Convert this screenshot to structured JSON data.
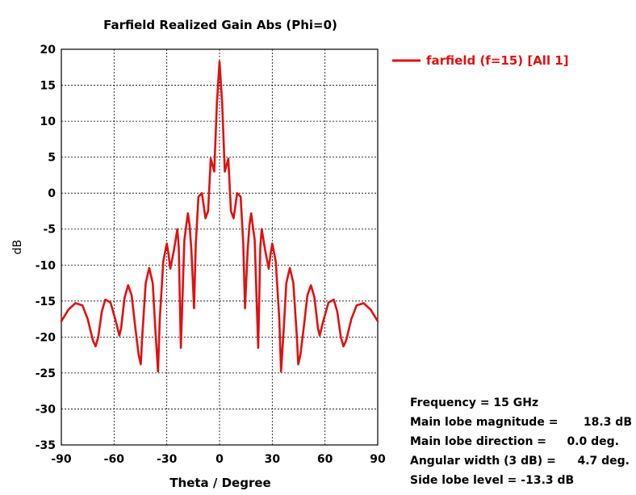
{
  "chart_data": {
    "type": "line",
    "title": "Farfield Realized Gain Abs (Phi=0)",
    "xlabel": "Theta / Degree",
    "ylabel": "dB",
    "xlim": [
      -90,
      90
    ],
    "ylim": [
      -35,
      20
    ],
    "xticks": [
      -90,
      -60,
      -30,
      0,
      30,
      60,
      90
    ],
    "yticks": [
      20,
      15,
      10,
      5,
      0,
      -5,
      -10,
      -15,
      -20,
      -25,
      -30,
      -35
    ],
    "grid": true,
    "legend_position": "top-right",
    "line_color": "#e01010",
    "series": [
      {
        "name": "farfield (f=15) [All 1]",
        "x": [
          -90,
          -86,
          -82,
          -78,
          -75,
          -72,
          -70.5,
          -69,
          -67,
          -65,
          -62,
          -59,
          -57,
          -56,
          -54,
          -52,
          -50,
          -48,
          -46,
          -44.8,
          -44,
          -42,
          -40,
          -38,
          -36.5,
          -35,
          -34,
          -32,
          -30,
          -29,
          -28,
          -26,
          -24,
          -23.2,
          -22,
          -20,
          -18,
          -17,
          -16,
          -14.5,
          -13.5,
          -12,
          -10,
          -8,
          -6.5,
          -5,
          -3,
          -1.5,
          0,
          1.5,
          3,
          5,
          6.5,
          8,
          10,
          12,
          13.5,
          14.5,
          16,
          17,
          18,
          20,
          22,
          23.2,
          24,
          26,
          28,
          29,
          30,
          32,
          34,
          35,
          36.5,
          38,
          40,
          42,
          44,
          44.8,
          46,
          48,
          50,
          52,
          54,
          56,
          57,
          59,
          62,
          65,
          67,
          69,
          70.5,
          72,
          75,
          78,
          82,
          86,
          90
        ],
        "y": [
          -17.8,
          -16.2,
          -15.3,
          -15.6,
          -17.5,
          -20.5,
          -21.3,
          -20.0,
          -16.5,
          -14.8,
          -15.2,
          -17.8,
          -19.8,
          -18.8,
          -14.5,
          -12.8,
          -14.2,
          -18.5,
          -22.5,
          -23.8,
          -20.0,
          -12.5,
          -10.4,
          -12.5,
          -19.0,
          -24.8,
          -17.5,
          -9.5,
          -7.0,
          -8.5,
          -10.5,
          -8.0,
          -5.0,
          -7.5,
          -21.5,
          -6.5,
          -2.8,
          -4.5,
          -8.0,
          -16.0,
          -7.0,
          -0.5,
          0.0,
          -3.5,
          -2.5,
          4.8,
          3.0,
          12.5,
          18.3,
          12.5,
          3.0,
          4.8,
          -2.5,
          -3.5,
          0.0,
          -0.5,
          -7.0,
          -16.0,
          -8.0,
          -4.5,
          -2.8,
          -6.5,
          -21.5,
          -7.5,
          -5.0,
          -8.0,
          -10.5,
          -8.5,
          -7.0,
          -9.5,
          -17.5,
          -24.8,
          -19.0,
          -12.5,
          -10.4,
          -12.5,
          -20.0,
          -23.8,
          -22.5,
          -18.5,
          -14.2,
          -12.8,
          -14.5,
          -18.8,
          -19.8,
          -17.8,
          -15.2,
          -14.8,
          -16.5,
          -20.0,
          -21.3,
          -20.5,
          -17.5,
          -15.6,
          -15.3,
          -16.2,
          -17.8
        ]
      }
    ]
  },
  "info": {
    "frequency": "Frequency = 15 GHz",
    "main_lobe_magnitude_label": "Main lobe magnitude =",
    "main_lobe_magnitude_value": "18.3 dB",
    "main_lobe_direction_label": "Main lobe direction =",
    "main_lobe_direction_value": "0.0 deg.",
    "angular_width_label": "Angular width (3 dB) =",
    "angular_width_value": "4.7 deg.",
    "side_lobe_level": "Side lobe level = -13.3 dB"
  }
}
